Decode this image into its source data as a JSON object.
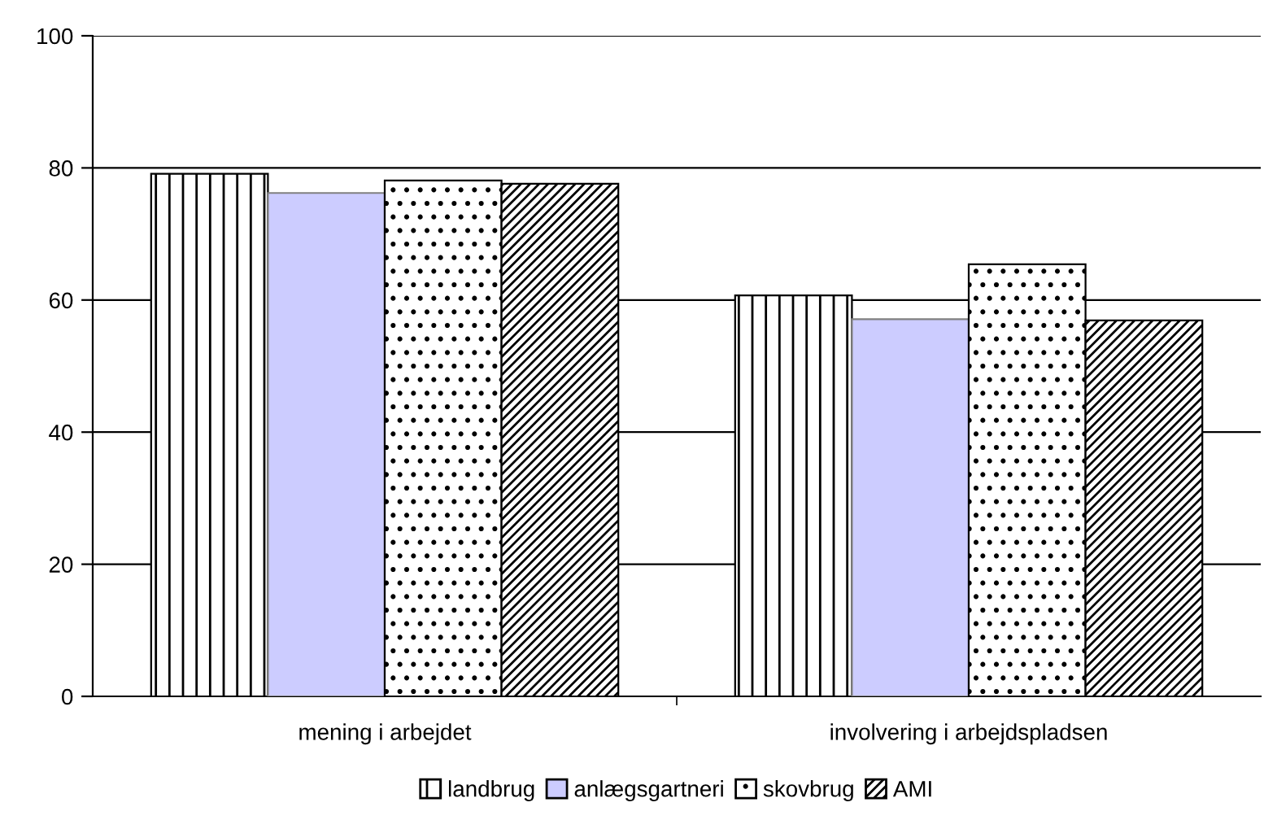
{
  "chart_data": {
    "type": "bar",
    "categories": [
      "mening i arbejdet",
      "involvering i arbejdspladsen"
    ],
    "series": [
      {
        "name": "landbrug",
        "color": "#000000",
        "values": [
          79.1,
          60.7
        ]
      },
      {
        "name": "anlægsgartneri",
        "color": "#ccccff",
        "values": [
          76.2,
          57.1
        ]
      },
      {
        "name": "skovbrug",
        "color": "#000000",
        "values": [
          78.1,
          65.4
        ]
      },
      {
        "name": "AMI",
        "color": "#000000",
        "values": [
          77.6,
          56.9
        ]
      }
    ],
    "ylim": [
      0,
      100
    ],
    "yticks": [
      0,
      20,
      40,
      60,
      80,
      100
    ],
    "grid": "y",
    "legend": "bottom"
  }
}
